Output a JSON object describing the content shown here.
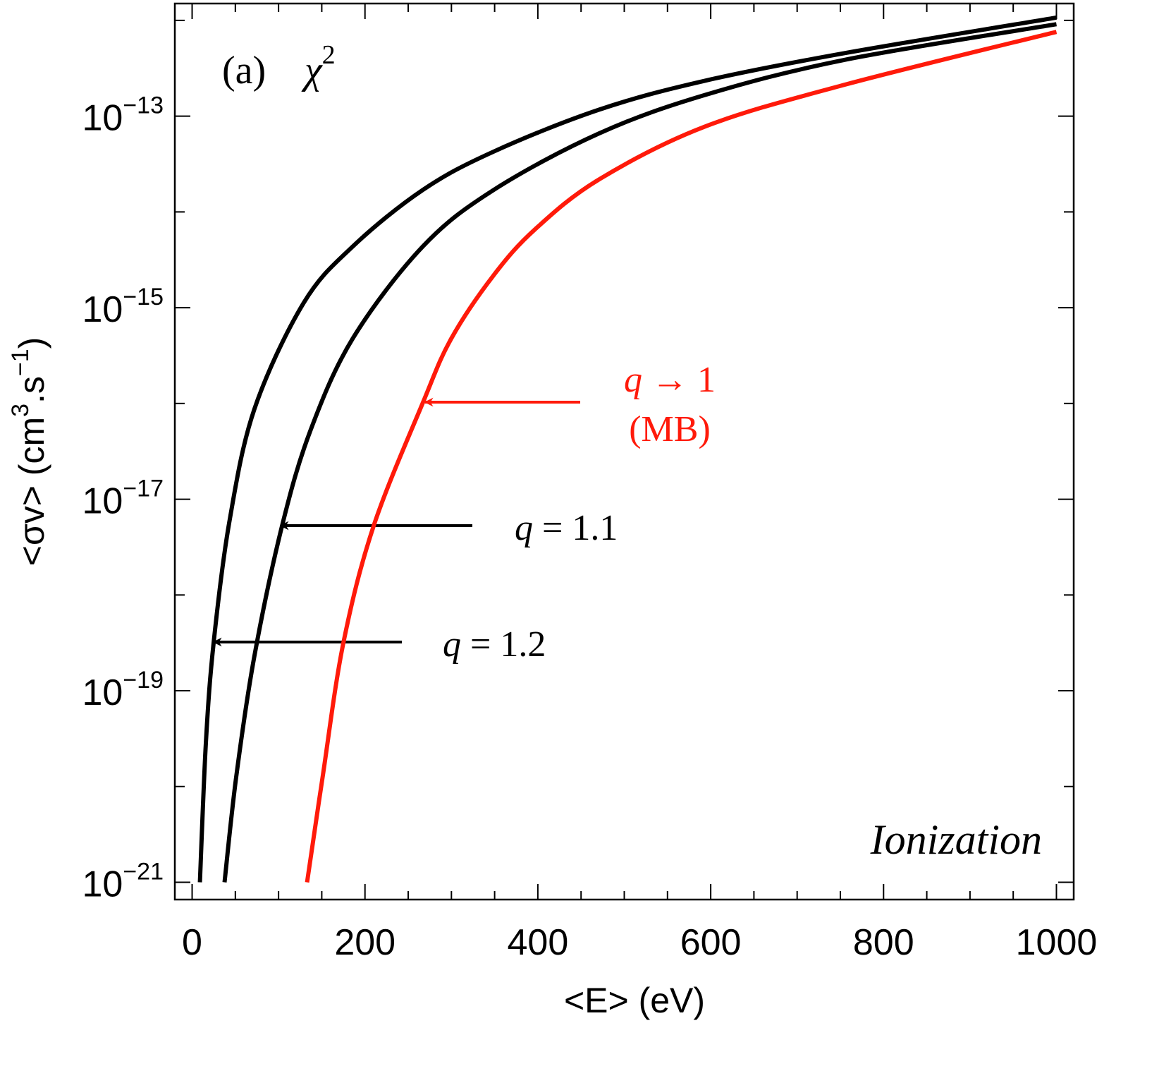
{
  "chart_data": {
    "type": "line",
    "panel_label": "(a)",
    "panel_symbol": [
      "χ",
      "2"
    ],
    "process_label": "Ionization",
    "mb_label": "(MB)",
    "xlabel": "<E> (eV)",
    "ylabel_parts": [
      "<σv> (cm",
      "3",
      ".s",
      "−1",
      ")"
    ],
    "log_y": true,
    "xlim": [
      -20,
      1020
    ],
    "ylim": [
      6.6e-22,
      1.5e-12
    ],
    "xticks": [
      0,
      200,
      400,
      600,
      800,
      1000
    ],
    "xminorticks": [
      50,
      100,
      150,
      250,
      300,
      350,
      450,
      500,
      550,
      650,
      700,
      750,
      850,
      900,
      950
    ],
    "yticks": [
      {
        "value": 1e-21,
        "label": "10−21"
      },
      {
        "value": 1e-19,
        "label": "10−19"
      },
      {
        "value": 1e-17,
        "label": "10−17"
      },
      {
        "value": 1e-15,
        "label": "10−15"
      },
      {
        "value": 1e-13,
        "label": "10−13"
      }
    ],
    "yminorticks": [
      1e-20,
      1e-18,
      1e-16,
      1e-14,
      1e-12
    ],
    "series": [
      {
        "name": "q = 1.2",
        "color": "#000000",
        "x": [
          9,
          16,
          25,
          43,
          72,
          129,
          186,
          267,
          349,
          471,
          593,
          756,
          1000
        ],
        "values": [
          1e-21,
          2.95e-20,
          3.24e-19,
          5.75e-18,
          8.71e-17,
          1.12e-15,
          4.37e-15,
          1.7e-14,
          4.27e-14,
          1.17e-13,
          2.34e-13,
          4.57e-13,
          1.07e-12
        ]
      },
      {
        "name": "q = 1.1",
        "color": "#000000",
        "x": [
          37.5,
          51,
          72,
          104,
          137,
          186,
          267,
          349,
          471,
          593,
          756,
          1000
        ],
        "values": [
          1e-21,
          1.26e-20,
          2.29e-19,
          5.25e-18,
          5.25e-17,
          4.79e-16,
          4.37e-15,
          1.7e-14,
          6.61e-14,
          1.66e-13,
          3.89e-13,
          9.12e-13
        ]
      },
      {
        "name": "q → 1",
        "color": "#ff1a0a",
        "x": [
          133,
          151,
          175,
          210,
          267,
          300,
          349,
          397,
          471,
          593,
          756,
          1000
        ],
        "values": [
          1e-21,
          1.26e-20,
          3.16e-19,
          5.25e-18,
          1.02e-16,
          4.79e-16,
          2.19e-15,
          6.61e-15,
          2.19e-14,
          7.76e-14,
          2.14e-13,
          7.59e-13
        ]
      }
    ]
  }
}
